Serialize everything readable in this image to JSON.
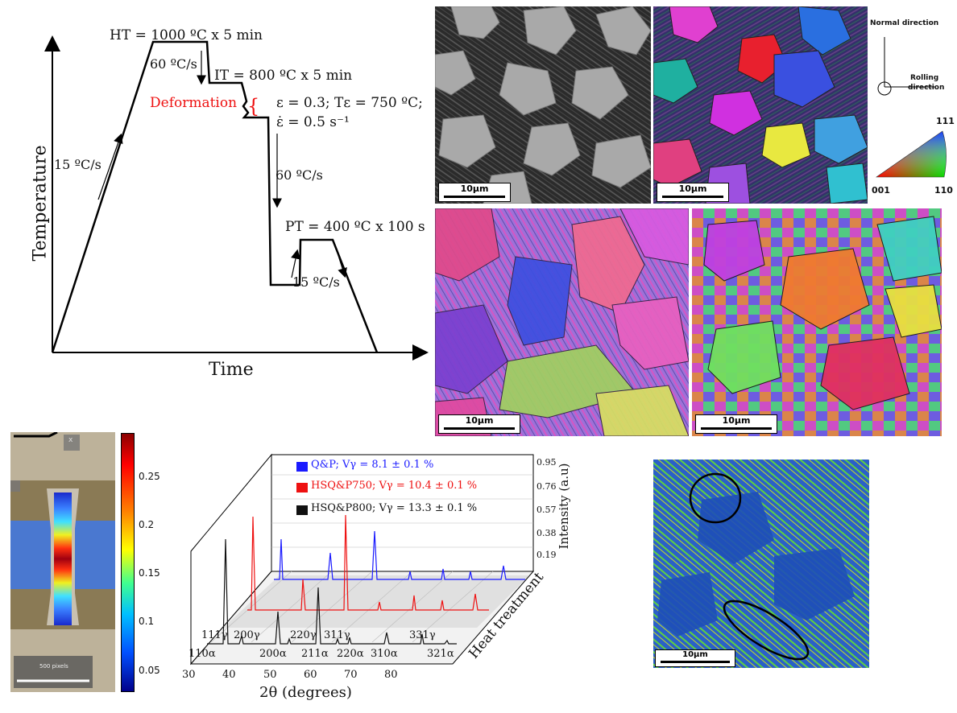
{
  "schedule": {
    "ht_label": "HT = 1000 ºC x 5 min",
    "rate_heat": "15 ºC/s",
    "rate_cool1": "60 ºC/s",
    "it_label": "IT = 800 ºC x 5 min",
    "deformation": "Deformation",
    "def_params_1": "ε = 0.3; Tε = 750 ºC;",
    "def_params_2": "ε̇ = 0.5 s⁻¹",
    "rate_cool2": "60 ºC/s",
    "pt_label": "PT = 400 ºC x 100 s",
    "rate_pt": "15 ºC/s",
    "y_axis": "Temperature",
    "x_axis": "Time"
  },
  "micrographs": {
    "scale_1": "10µm",
    "scale_2": "10µm",
    "scale_3": "10µm",
    "scale_4": "10µm",
    "scale_5": "10µm"
  },
  "ipf_key": {
    "normal_direction": "Normal direction",
    "rolling_direction_1": "Rolling",
    "rolling_direction_2": "direction",
    "pole_111": "111",
    "pole_001": "001",
    "pole_110": "110"
  },
  "strain_map": {
    "scale_text": "500 pixels",
    "overlay_x": "x",
    "colorbar_ticks": [
      "0.25",
      "0.2",
      "0.15",
      "0.1",
      "0.05"
    ]
  },
  "xrd": {
    "legend": [
      {
        "text": "Q&P; Vγ = 8.1 ± 0.1 %",
        "color": "#1a1aff"
      },
      {
        "text": "HSQ&P750; Vγ = 10.4 ± 0.1 %",
        "color": "#ee1111"
      },
      {
        "text": "HSQ&P800; Vγ = 13.3 ± 0.1 %",
        "color": "#111111"
      }
    ],
    "intensity_ticks": [
      "0.95",
      "0.76",
      "0.57",
      "0.38",
      "0.19"
    ],
    "intensity_label": "Intensity (a.u)",
    "depth_label": "Heat treatment",
    "x_ticks": [
      "30",
      "40",
      "50",
      "60",
      "70",
      "80"
    ],
    "x_label": "2θ (degrees)",
    "peaks_gamma": [
      "111γ",
      "200γ",
      "220γ",
      "311γ",
      "331γ"
    ],
    "peaks_alpha": [
      "110α",
      "200α",
      "211α",
      "220α",
      "310α",
      "321α"
    ]
  },
  "kam_map": {
    "scale": "10µm"
  }
}
